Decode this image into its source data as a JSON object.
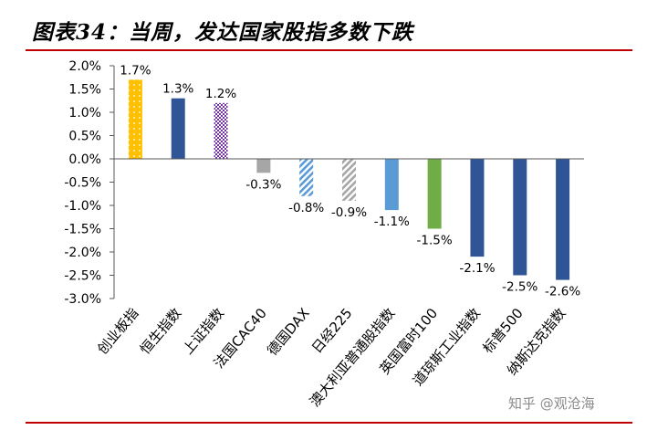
{
  "header": {
    "title": "图表34：当周，发达国家股指多数下跌"
  },
  "watermark": "知乎 @观沧海",
  "colors": {
    "title_rule": "#c00000",
    "axis": "#595959",
    "navy": "#2f5597",
    "gold": "#ffc000",
    "purple": "#7030a0",
    "gray": "#a6a6a6",
    "light_blue": "#5b9bd5",
    "green": "#70ad47"
  },
  "chart_data": {
    "type": "bar",
    "title": "",
    "xlabel": "",
    "ylabel": "",
    "ylim": [
      -3.0,
      2.0
    ],
    "yticks": [
      2.0,
      1.5,
      1.0,
      0.5,
      0.0,
      -0.5,
      -1.0,
      -1.5,
      -2.0,
      -2.5,
      -3.0
    ],
    "ytick_labels": [
      "2.0%",
      "1.5%",
      "1.0%",
      "0.5%",
      "0.0%",
      "-0.5%",
      "-1.0%",
      "-1.5%",
      "-2.0%",
      "-2.5%",
      "-3.0%"
    ],
    "grid": false,
    "legend": "none",
    "categories": [
      "创业板指",
      "恒生指数",
      "上证指数",
      "法国CAC40",
      "德国DAX",
      "日经225",
      "澳大利亚普通股指数",
      "英国富时100",
      "道琼斯工业指数",
      "标普500",
      "纳斯达克指数"
    ],
    "values": [
      1.7,
      1.3,
      1.2,
      -0.3,
      -0.8,
      -0.9,
      -1.1,
      -1.5,
      -2.1,
      -2.5,
      -2.6
    ],
    "data_labels": [
      "1.7%",
      "1.3%",
      "1.2%",
      "-0.3%",
      "-0.8%",
      "-0.9%",
      "-1.1%",
      "-1.5%",
      "-2.1%",
      "-2.5%",
      "-2.6%"
    ],
    "bar_colors": [
      "#ffc000",
      "#2f5597",
      "#7030a0",
      "#a6a6a6",
      "#5b9bd5",
      "#a6a6a6",
      "#5b9bd5",
      "#70ad47",
      "#2f5597",
      "#2f5597",
      "#2f5597"
    ],
    "bar_patterns": [
      "dots",
      "solid",
      "checker",
      "solid",
      "hatch",
      "hatch",
      "solid",
      "solid",
      "solid",
      "solid",
      "solid"
    ]
  }
}
